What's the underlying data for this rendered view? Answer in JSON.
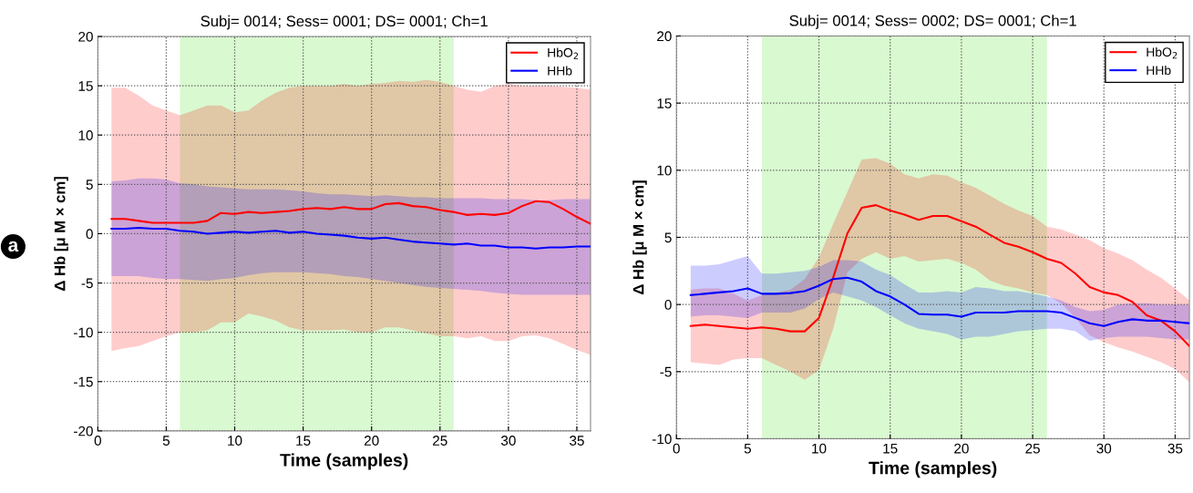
{
  "chart_data": [
    {
      "type": "line",
      "title": "Subj= 0014; Sess= 0001; DS= 0001; Ch=1",
      "xlabel": "Time (samples)",
      "ylabel": "Δ Hb [μ M × cm]",
      "annotations": [
        "a"
      ],
      "x": [
        1,
        2,
        3,
        4,
        5,
        6,
        7,
        8,
        9,
        10,
        11,
        12,
        13,
        14,
        15,
        16,
        17,
        18,
        19,
        20,
        21,
        22,
        23,
        24,
        25,
        26,
        27,
        28,
        29,
        30,
        31,
        32,
        33,
        34,
        35,
        36
      ],
      "series": [
        {
          "name": "HbO$_{2}$",
          "color": "#ff0000",
          "values": [
            1.5,
            1.5,
            1.3,
            1.1,
            1.1,
            1.1,
            1.1,
            1.3,
            2.1,
            2.0,
            2.2,
            2.1,
            2.2,
            2.3,
            2.5,
            2.6,
            2.5,
            2.7,
            2.5,
            2.5,
            3.0,
            3.1,
            2.8,
            2.7,
            2.4,
            2.2,
            1.9,
            2.0,
            1.9,
            2.1,
            2.8,
            3.3,
            3.2,
            2.5,
            1.7,
            1.0
          ],
          "upper": [
            14.8,
            14.8,
            14.0,
            13.0,
            12.5,
            12.0,
            12.5,
            13.0,
            13.0,
            12.3,
            12.5,
            13.5,
            14.3,
            14.8,
            15.0,
            15.0,
            15.0,
            15.2,
            15.0,
            15.2,
            15.3,
            15.5,
            15.4,
            15.6,
            15.4,
            15.0,
            14.6,
            14.4,
            15.0,
            15.2,
            15.0,
            15.0,
            15.0,
            14.9,
            14.8,
            14.6
          ],
          "lower": [
            -11.9,
            -11.6,
            -11.4,
            -10.9,
            -10.4,
            -10.0,
            -10.0,
            -9.8,
            -9.0,
            -9.0,
            -8.1,
            -8.4,
            -8.8,
            -9.5,
            -9.8,
            -9.8,
            -9.8,
            -9.7,
            -10.0,
            -10.0,
            -9.5,
            -9.5,
            -9.8,
            -10.1,
            -10.4,
            -10.4,
            -10.6,
            -10.4,
            -10.9,
            -10.9,
            -10.4,
            -10.3,
            -10.6,
            -11.2,
            -11.8,
            -12.3
          ]
        },
        {
          "name": "HHb",
          "color": "#0000ff",
          "values": [
            0.5,
            0.5,
            0.6,
            0.5,
            0.5,
            0.3,
            0.2,
            0.0,
            0.1,
            0.2,
            0.1,
            0.2,
            0.3,
            0.1,
            0.2,
            0.0,
            -0.1,
            -0.2,
            -0.4,
            -0.5,
            -0.4,
            -0.6,
            -0.8,
            -0.9,
            -1.0,
            -1.1,
            -1.0,
            -1.2,
            -1.2,
            -1.4,
            -1.4,
            -1.5,
            -1.4,
            -1.4,
            -1.3,
            -1.3
          ],
          "upper": [
            5.3,
            5.4,
            5.6,
            5.6,
            5.5,
            5.1,
            5.0,
            4.8,
            4.7,
            4.6,
            4.5,
            4.5,
            4.5,
            4.4,
            4.3,
            4.1,
            4.0,
            4.0,
            3.9,
            3.8,
            3.9,
            3.8,
            3.7,
            3.7,
            3.6,
            3.6,
            3.6,
            3.6,
            3.5,
            3.5,
            3.5,
            3.4,
            3.4,
            3.5,
            3.5,
            3.5
          ],
          "lower": [
            -4.3,
            -4.3,
            -4.3,
            -4.5,
            -4.6,
            -4.6,
            -4.7,
            -4.8,
            -4.6,
            -4.5,
            -4.2,
            -4.0,
            -3.9,
            -3.9,
            -3.9,
            -4.0,
            -4.1,
            -4.3,
            -4.4,
            -4.6,
            -4.8,
            -5.0,
            -5.2,
            -5.4,
            -5.5,
            -5.6,
            -5.7,
            -5.8,
            -6.0,
            -6.1,
            -6.2,
            -6.2,
            -6.2,
            -6.2,
            -6.2,
            -6.2
          ]
        }
      ],
      "bands": [
        {
          "axis": "x",
          "from": 6,
          "to": 26,
          "color": "#d9f9d0"
        }
      ],
      "xlim": [
        0,
        36
      ],
      "xticks": [
        0,
        5,
        10,
        15,
        20,
        25,
        30,
        35
      ],
      "ylim": [
        -20,
        20
      ],
      "yticks": [
        -20,
        -15,
        -10,
        -5,
        0,
        5,
        10,
        15,
        20
      ],
      "grid": true,
      "legend": "top right",
      "line_style": "solid",
      "marker": "none"
    },
    {
      "type": "line",
      "title": "Subj= 0014; Sess= 0002; DS= 0001; Ch=1",
      "xlabel": "Time (samples)",
      "ylabel": "Δ Hb [μ M × cm]",
      "x": [
        1,
        2,
        3,
        4,
        5,
        6,
        7,
        8,
        9,
        10,
        11,
        12,
        13,
        14,
        15,
        16,
        17,
        18,
        19,
        20,
        21,
        22,
        23,
        24,
        25,
        26,
        27,
        28,
        29,
        30,
        31,
        32,
        33,
        34,
        35,
        36
      ],
      "series": [
        {
          "name": "HbO$_{2}$",
          "color": "#ff0000",
          "values": [
            -1.6,
            -1.5,
            -1.6,
            -1.7,
            -1.8,
            -1.7,
            -1.8,
            -2.0,
            -2.0,
            -1.0,
            2.0,
            5.3,
            7.2,
            7.4,
            7.0,
            6.7,
            6.3,
            6.6,
            6.6,
            6.2,
            5.8,
            5.2,
            4.6,
            4.3,
            3.9,
            3.4,
            3.1,
            2.3,
            1.3,
            0.9,
            0.7,
            0.2,
            -0.8,
            -1.2,
            -2.0,
            -3.1
          ],
          "upper": [
            1.1,
            1.2,
            1.2,
            0.8,
            0.3,
            0.7,
            0.9,
            1.1,
            1.9,
            3.5,
            6.0,
            8.4,
            10.8,
            10.9,
            10.5,
            9.7,
            9.4,
            9.7,
            9.6,
            9.1,
            8.7,
            8.1,
            7.5,
            7.0,
            6.6,
            5.8,
            5.6,
            5.2,
            4.8,
            4.2,
            3.8,
            3.3,
            2.6,
            2.0,
            1.2,
            0.3
          ],
          "lower": [
            -4.3,
            -4.4,
            -4.5,
            -4.1,
            -4.0,
            -4.0,
            -4.5,
            -5.0,
            -5.6,
            -4.9,
            -1.8,
            2.4,
            3.4,
            3.9,
            3.4,
            3.6,
            3.2,
            3.3,
            3.4,
            3.1,
            2.6,
            1.8,
            1.4,
            1.2,
            0.9,
            0.7,
            0.1,
            -1.0,
            -2.3,
            -2.8,
            -3.2,
            -3.5,
            -3.9,
            -4.3,
            -4.8,
            -5.8
          ]
        },
        {
          "name": "HHb",
          "color": "#0000ff",
          "values": [
            0.7,
            0.8,
            0.9,
            1.0,
            1.2,
            0.8,
            0.8,
            0.85,
            1.0,
            1.4,
            1.9,
            2.0,
            1.7,
            1.0,
            0.6,
            0.0,
            -0.7,
            -0.75,
            -0.75,
            -0.9,
            -0.6,
            -0.6,
            -0.6,
            -0.5,
            -0.5,
            -0.5,
            -0.6,
            -1.0,
            -1.4,
            -1.6,
            -1.3,
            -1.1,
            -1.2,
            -1.2,
            -1.3,
            -1.4
          ],
          "upper": [
            2.9,
            2.9,
            3.0,
            3.3,
            3.6,
            2.3,
            2.3,
            2.4,
            2.5,
            2.8,
            3.3,
            3.3,
            3.2,
            2.6,
            2.2,
            1.5,
            0.9,
            0.9,
            1.0,
            0.9,
            1.3,
            1.2,
            1.0,
            1.0,
            0.8,
            0.6,
            0.3,
            -0.2,
            -0.5,
            -0.4,
            0.0,
            0.1,
            0.1,
            0.0,
            0.0,
            0.0
          ],
          "lower": [
            -0.9,
            -0.8,
            -0.8,
            -0.9,
            -1.0,
            -0.6,
            -0.6,
            -0.6,
            -0.3,
            0.4,
            0.9,
            0.6,
            0.3,
            -0.2,
            -0.8,
            -1.4,
            -1.8,
            -2.0,
            -2.2,
            -2.6,
            -2.4,
            -2.4,
            -2.2,
            -2.0,
            -1.9,
            -1.8,
            -1.8,
            -2.0,
            -2.7,
            -2.5,
            -2.4,
            -2.4,
            -2.4,
            -2.5,
            -2.6,
            -2.6
          ]
        }
      ],
      "bands": [
        {
          "axis": "x",
          "from": 6,
          "to": 26,
          "color": "#d9f9d0"
        }
      ],
      "xlim": [
        0,
        36
      ],
      "xticks": [
        0,
        5,
        10,
        15,
        20,
        25,
        30,
        35
      ],
      "ylim": [
        -10,
        20
      ],
      "yticks": [
        -10,
        -5,
        0,
        5,
        10,
        15,
        20
      ],
      "grid": true,
      "legend": "top right",
      "line_style": "solid",
      "marker": "none"
    }
  ]
}
